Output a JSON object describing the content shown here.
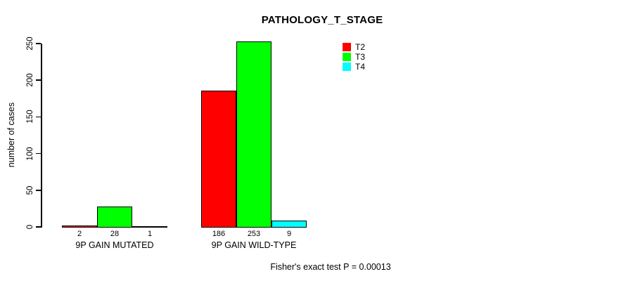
{
  "chart_data": {
    "type": "bar",
    "title": "PATHOLOGY_T_STAGE",
    "ylabel": "number of cases",
    "xlabel": "",
    "ylim": [
      0,
      250
    ],
    "yticks": [
      0,
      50,
      100,
      150,
      200,
      250
    ],
    "categories": [
      "9P GAIN MUTATED",
      "9P GAIN WILD-TYPE"
    ],
    "series": [
      {
        "name": "T2",
        "color": "#FF0000",
        "values": [
          2,
          186
        ]
      },
      {
        "name": "T3",
        "color": "#00FF00",
        "values": [
          28,
          253
        ]
      },
      {
        "name": "T4",
        "color": "#00FFFF",
        "values": [
          1,
          9
        ]
      }
    ],
    "value_labels_shown": true,
    "legend_position": "top-right",
    "grid": false,
    "annotation": "Fisher's exact test P = 0.00013",
    "colors": {
      "bar_border": "#000000",
      "axis": "#000000",
      "text": "#000000",
      "background": "#FFFFFF"
    }
  }
}
